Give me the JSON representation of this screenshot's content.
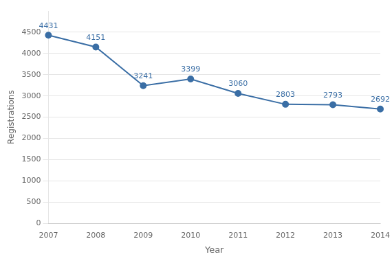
{
  "chart_data": {
    "type": "line",
    "xlabel": "Year",
    "ylabel": "Registrations",
    "categories": [
      "2007",
      "2008",
      "2009",
      "2010",
      "2011",
      "2012",
      "2013",
      "2014"
    ],
    "values": [
      4431,
      4151,
      3241,
      3399,
      3060,
      2803,
      2793,
      2692
    ],
    "color": "#3A6EA5",
    "marker": "circle",
    "ylim": [
      0,
      5000
    ],
    "yticks": [
      0,
      500,
      1000,
      1500,
      2000,
      2500,
      3000,
      3500,
      4000,
      4500
    ],
    "grid": true,
    "data_labels": true
  }
}
